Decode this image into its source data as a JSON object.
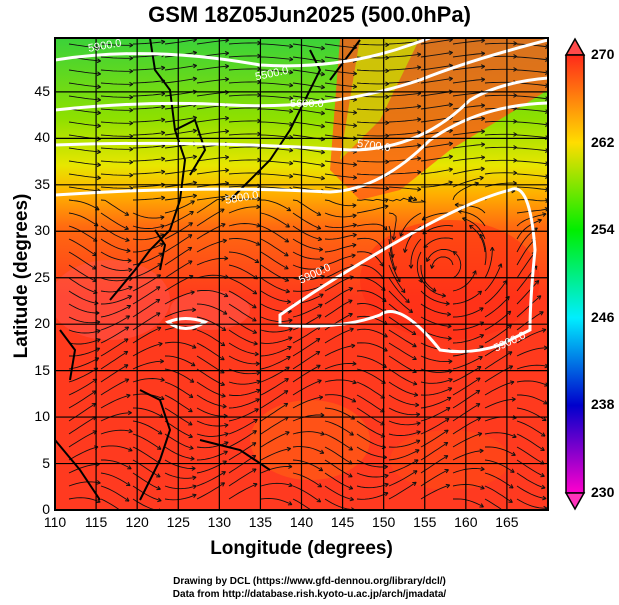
{
  "title": "GSM 18Z05Jun2025 (500.0hPa)",
  "xaxis": {
    "label": "Longitude (degrees)",
    "ticks": [
      "110",
      "115",
      "120",
      "125",
      "130",
      "135",
      "140",
      "145",
      "150",
      "155",
      "160",
      "165"
    ]
  },
  "yaxis": {
    "label": "Latitude  (degrees)",
    "ticks": [
      "0",
      "5",
      "10",
      "15",
      "20",
      "25",
      "30",
      "35",
      "40",
      "45"
    ]
  },
  "colorbar": {
    "ticks": [
      "270",
      "262",
      "254",
      "246",
      "238",
      "230"
    ],
    "colors": [
      "#ff2a1a",
      "#ffdd00",
      "#00ee00",
      "#00eeff",
      "#0000cc",
      "#ff00cc"
    ]
  },
  "contours": {
    "labels": [
      "5500.0",
      "5600.0",
      "5700.0",
      "5800.0",
      "5900.0",
      "5900.0",
      "5900.0"
    ]
  },
  "credits": [
    "Drawing by DCL (https://www.gfd-dennou.org/library/dcl/)",
    "Data from http://database.rish.kyoto-u.ac.jp/arch/jmadata/"
  ]
}
